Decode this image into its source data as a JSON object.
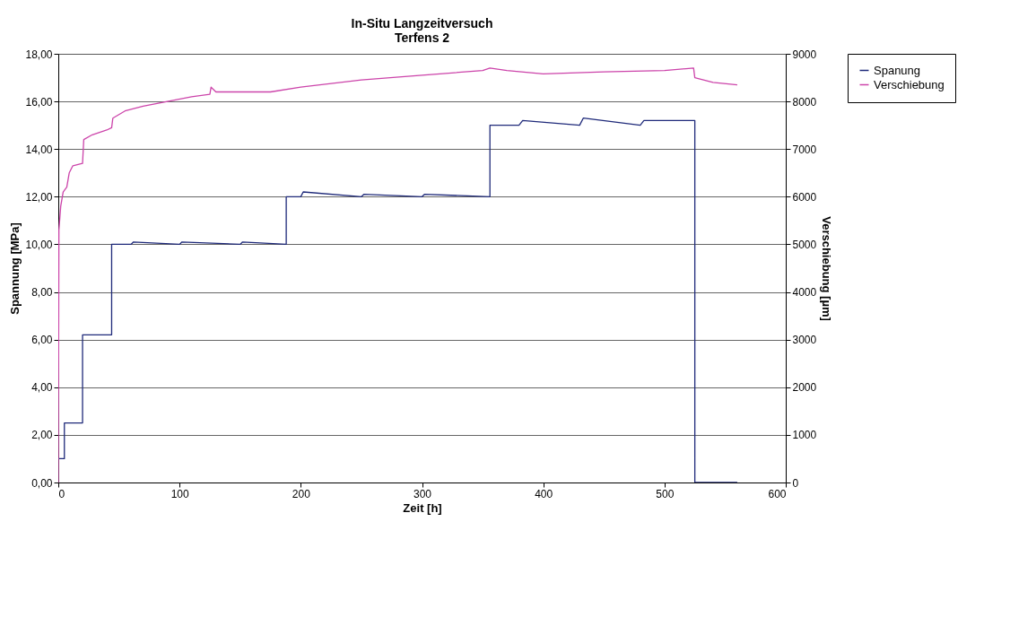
{
  "chart_data": {
    "type": "line",
    "title": [
      "In-Situ Langzeitversuch",
      "Terfens 2"
    ],
    "xlabel": "Zeit [h]",
    "ylabel": "Spannung [MPa]",
    "y2label": "Verschiebung [µm]",
    "xlim": [
      0,
      600
    ],
    "xticks": [
      0,
      100,
      200,
      300,
      400,
      500,
      600
    ],
    "ylim": [
      0,
      18
    ],
    "yticks": [
      {
        "value": 0,
        "label": "0,00"
      },
      {
        "value": 2,
        "label": "2,00"
      },
      {
        "value": 4,
        "label": "4,00"
      },
      {
        "value": 6,
        "label": "6,00"
      },
      {
        "value": 8,
        "label": "8,00"
      },
      {
        "value": 10,
        "label": "10,00"
      },
      {
        "value": 12,
        "label": "12,00"
      },
      {
        "value": 14,
        "label": "14,00"
      },
      {
        "value": 16,
        "label": "16,00"
      },
      {
        "value": 18,
        "label": "18,00"
      }
    ],
    "y2lim": [
      0,
      9000
    ],
    "y2ticks": [
      0,
      1000,
      2000,
      3000,
      4000,
      5000,
      6000,
      7000,
      8000,
      9000
    ],
    "grid": "y",
    "legend": "right",
    "marker": "none",
    "line_style": "solid",
    "series": [
      {
        "name": "Spanung",
        "color": "#1f2a7a",
        "x": [
          0,
          5,
          5,
          20,
          20,
          44,
          44,
          60,
          62,
          100,
          102,
          150,
          152,
          188,
          188,
          200,
          202,
          250,
          252,
          300,
          302,
          356,
          356,
          380,
          383,
          430,
          433,
          480,
          483,
          525,
          525,
          560
        ],
        "values": [
          1.0,
          1.0,
          2.5,
          2.5,
          6.2,
          6.2,
          10.0,
          10.0,
          10.1,
          10.0,
          10.1,
          10.0,
          10.1,
          10.0,
          12.0,
          12.0,
          12.2,
          12.0,
          12.1,
          12.0,
          12.1,
          12.0,
          15.0,
          15.0,
          15.2,
          15.0,
          15.3,
          15.0,
          15.2,
          15.2,
          0,
          0
        ]
      },
      {
        "name": "Verschiebung",
        "color": "#cc44aa",
        "axis": "y2",
        "x": [
          0,
          0.5,
          2,
          4,
          7,
          9,
          12,
          20,
          21,
          28,
          40,
          44,
          45,
          55,
          70,
          90,
          110,
          125,
          126,
          130,
          150,
          175,
          200,
          250,
          300,
          350,
          356,
          370,
          400,
          450,
          500,
          524,
          525,
          540,
          560
        ],
        "values": [
          0,
          5300,
          5800,
          6100,
          6200,
          6500,
          6650,
          6700,
          7200,
          7300,
          7400,
          7450,
          7650,
          7800,
          7900,
          8000,
          8100,
          8150,
          8300,
          8200,
          8200,
          8200,
          8300,
          8450,
          8550,
          8650,
          8700,
          8650,
          8580,
          8620,
          8650,
          8700,
          8500,
          8400,
          8350
        ]
      }
    ]
  }
}
